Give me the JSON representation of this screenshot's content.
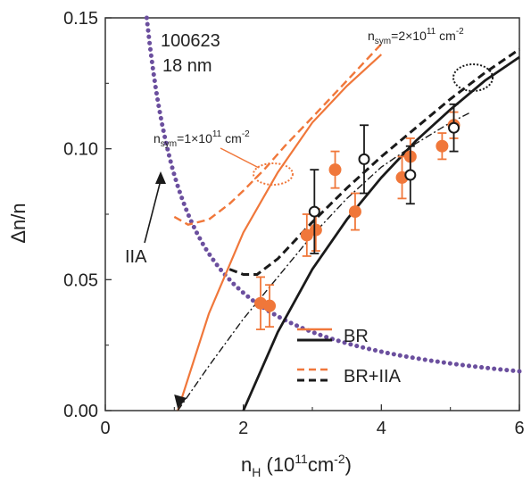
{
  "chart_data": {
    "type": "scatter",
    "xlabel_main": "n",
    "xlabel_sub": "H",
    "xlabel_paren_open": " (10",
    "xlabel_exp": "11",
    "xlabel_unit": "cm",
    "xlabel_unit_exp": "-2",
    "xlabel_paren_close": ")",
    "ylabel": "Δn/n",
    "xlim": [
      0,
      6
    ],
    "ylim": [
      0,
      0.15
    ],
    "x_ticks": [
      0,
      2,
      4,
      6
    ],
    "x_tick_labels": [
      "0",
      "2",
      "4",
      "6"
    ],
    "y_ticks": [
      0.0,
      0.05,
      0.1,
      0.15
    ],
    "y_tick_labels": [
      "0.00",
      "0.05",
      "0.10",
      "0.15"
    ],
    "annotation_sample": "100623",
    "annotation_thickness": "18 nm",
    "label_iia": "IIA",
    "nsym1": {
      "n": "n",
      "sub": "sym",
      "eq": "=1×10",
      "exp": "11",
      "unit": " cm",
      "unit_exp": "-2"
    },
    "nsym2": {
      "n": "n",
      "sub": "sym",
      "eq": "=2×10",
      "exp": "11",
      "unit": " cm",
      "unit_exp": "-2"
    },
    "legend": [
      {
        "label": "BR",
        "style": "solid"
      },
      {
        "label": "BR+IIA",
        "style": "dashed"
      }
    ],
    "colors": {
      "orange": "#f0773a",
      "black": "#1a1a1a",
      "purple": "#6b4f9e"
    },
    "series": [
      {
        "kind": "points",
        "marker": "filled-circle",
        "color": "orange",
        "points": [
          {
            "x": 2.25,
            "y": 0.041,
            "err": 0.01
          },
          {
            "x": 2.38,
            "y": 0.04,
            "err": 0.008
          },
          {
            "x": 2.92,
            "y": 0.067,
            "err": 0.008
          },
          {
            "x": 3.05,
            "y": 0.069,
            "err": 0.008
          },
          {
            "x": 3.33,
            "y": 0.092,
            "err": 0.007
          },
          {
            "x": 3.62,
            "y": 0.076,
            "err": 0.007
          },
          {
            "x": 4.3,
            "y": 0.089,
            "err": 0.008
          },
          {
            "x": 4.42,
            "y": 0.097,
            "err": 0.007
          },
          {
            "x": 4.88,
            "y": 0.101,
            "err": 0.005
          },
          {
            "x": 5.05,
            "y": 0.109,
            "err": 0.005
          }
        ]
      },
      {
        "kind": "points",
        "marker": "open-circle",
        "color": "black",
        "points": [
          {
            "x": 3.03,
            "y": 0.076,
            "err": 0.016
          },
          {
            "x": 3.75,
            "y": 0.096,
            "err": 0.013
          },
          {
            "x": 4.42,
            "y": 0.09,
            "err": 0.011
          },
          {
            "x": 5.05,
            "y": 0.108,
            "err": 0.009
          }
        ]
      },
      {
        "kind": "curve",
        "style": "dotted-thick",
        "color": "purple",
        "formula": "IIA ~ 0.09 / x",
        "x_from": 0.6,
        "x_to": 6.0,
        "coef": 0.09
      },
      {
        "kind": "curve",
        "style": "solid",
        "color": "orange",
        "x": [
          1.05,
          1.5,
          2.0,
          2.5,
          3.0,
          3.5,
          4.0
        ],
        "y": [
          0.0,
          0.037,
          0.068,
          0.091,
          0.11,
          0.124,
          0.136
        ]
      },
      {
        "kind": "curve",
        "style": "dashed",
        "color": "orange",
        "x": [
          1.0,
          1.2,
          1.5,
          1.8,
          2.0,
          2.3,
          2.6,
          3.0,
          3.5,
          4.0
        ],
        "y": [
          0.074,
          0.071,
          0.073,
          0.079,
          0.084,
          0.092,
          0.101,
          0.112,
          0.126,
          0.14
        ]
      },
      {
        "kind": "curve",
        "style": "solid",
        "color": "black",
        "x": [
          2.0,
          2.5,
          3.0,
          3.5,
          4.0,
          4.5,
          5.0,
          5.5,
          6.0
        ],
        "y": [
          0.0,
          0.03,
          0.054,
          0.073,
          0.089,
          0.103,
          0.115,
          0.126,
          0.135
        ]
      },
      {
        "kind": "curve",
        "style": "dashed",
        "color": "black",
        "x": [
          1.8,
          2.0,
          2.2,
          2.5,
          3.0,
          3.5,
          4.0,
          4.5,
          5.0,
          5.5,
          6.0
        ],
        "y": [
          0.054,
          0.052,
          0.052,
          0.058,
          0.072,
          0.085,
          0.097,
          0.108,
          0.119,
          0.129,
          0.138
        ]
      },
      {
        "kind": "curve",
        "style": "dashdot",
        "color": "black",
        "x": [
          1.05,
          1.5,
          2.0,
          2.5,
          3.0,
          3.5,
          4.0,
          4.5,
          5.0,
          5.3
        ],
        "y": [
          0.0,
          0.017,
          0.035,
          0.051,
          0.067,
          0.081,
          0.093,
          0.102,
          0.11,
          0.114
        ]
      }
    ]
  }
}
